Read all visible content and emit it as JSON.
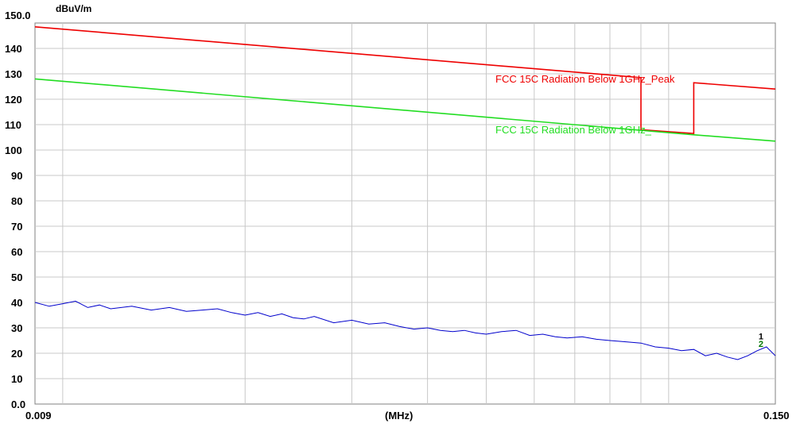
{
  "chart_data": {
    "type": "line",
    "ylabel": "dBuV/m",
    "xlabel": "(MHz)",
    "xscale": "log",
    "xlim": [
      0.009,
      0.15
    ],
    "ylim": [
      0,
      150
    ],
    "x_tick_labels": [
      "0.009",
      "0.150"
    ],
    "y_tick_labels": [
      "150.0",
      "140",
      "130",
      "120",
      "110",
      "100",
      "90",
      "80",
      "70",
      "60",
      "50",
      "40",
      "30",
      "20",
      "10",
      "0.0"
    ],
    "grid": true,
    "series": [
      {
        "name": "FCC  15C Radiation Below 1GHz_Peak",
        "color": "#ee0000",
        "x": [
          0.009,
          0.09,
          0.09,
          0.11,
          0.11,
          0.15
        ],
        "y": [
          148.5,
          128.5,
          108.0,
          106.5,
          126.5,
          124.0
        ]
      },
      {
        "name": "FCC  15C Radiation Below 1GHz_",
        "color": "#22dd22",
        "x": [
          0.009,
          0.11,
          0.15
        ],
        "y": [
          128.0,
          106.0,
          103.5
        ]
      },
      {
        "color": "#0000cc",
        "x": [
          0.009,
          0.0095,
          0.01,
          0.0105,
          0.011,
          0.0115,
          0.012,
          0.013,
          0.014,
          0.015,
          0.016,
          0.017,
          0.018,
          0.019,
          0.02,
          0.021,
          0.022,
          0.023,
          0.024,
          0.025,
          0.026,
          0.028,
          0.03,
          0.032,
          0.034,
          0.036,
          0.038,
          0.04,
          0.042,
          0.044,
          0.046,
          0.048,
          0.05,
          0.053,
          0.056,
          0.059,
          0.062,
          0.065,
          0.068,
          0.072,
          0.076,
          0.08,
          0.085,
          0.09,
          0.095,
          0.1,
          0.105,
          0.11,
          0.115,
          0.12,
          0.125,
          0.13,
          0.135,
          0.14,
          0.145,
          0.15
        ],
        "y": [
          40,
          38.5,
          39.5,
          40.5,
          38,
          39,
          37.5,
          38.5,
          37,
          38,
          36.5,
          37,
          37.5,
          36,
          35,
          36,
          34.5,
          35.5,
          34,
          33.5,
          34.5,
          32,
          33,
          31.5,
          32,
          30.5,
          29.5,
          30,
          29,
          28.5,
          29,
          28,
          27.5,
          28.5,
          29,
          27,
          27.5,
          26.5,
          26,
          26.5,
          25.5,
          25,
          24.5,
          24,
          22.5,
          22,
          21,
          21.5,
          19,
          20,
          18.5,
          17.5,
          19,
          21,
          22.5,
          19
        ]
      }
    ],
    "markers": [
      {
        "label": "1",
        "x": 0.142,
        "y": 25.5,
        "color": "#000000"
      },
      {
        "label": "2",
        "x": 0.142,
        "y": 22.5,
        "color": "#007700"
      }
    ]
  }
}
